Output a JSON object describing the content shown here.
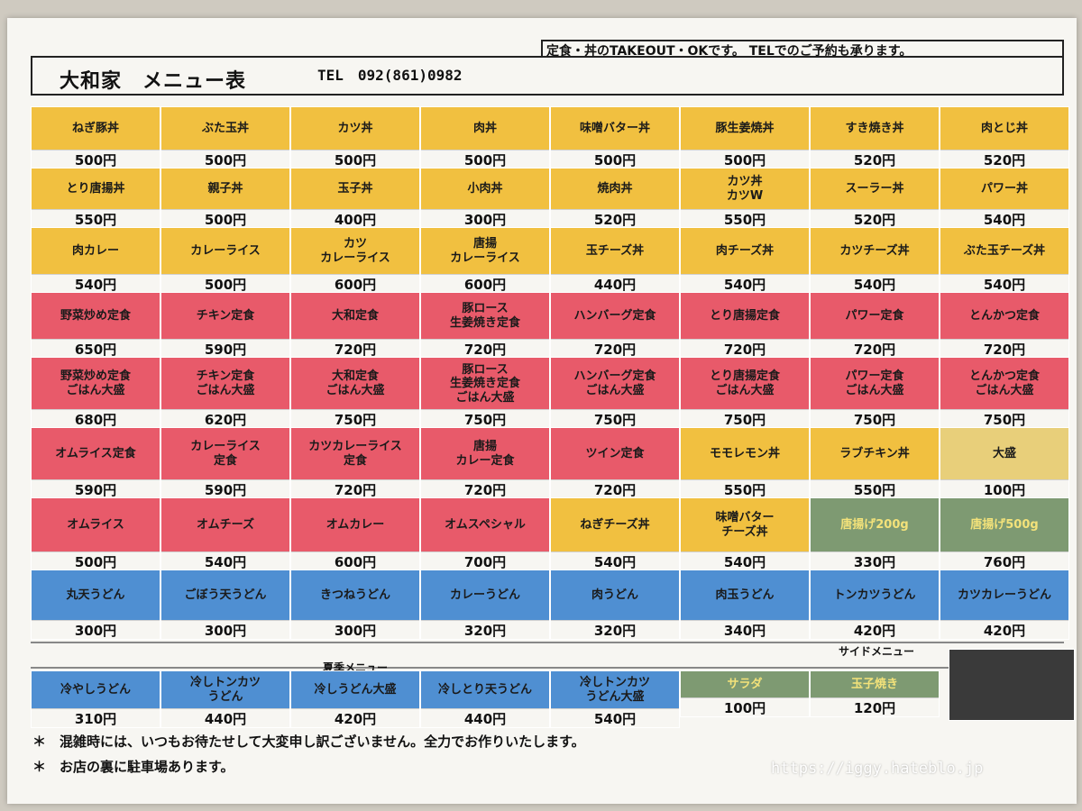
{
  "header": {
    "title": "大和家　メニュー表",
    "tel": "TEL　092(861)0982",
    "notice": "定食・丼のTAKEOUT・OKです。 TELでのご予約も承ります。"
  },
  "colors": {
    "yellow": "#f1c040",
    "red": "#e85a6a",
    "blue": "#4f8fd2",
    "green": "#7e9a72",
    "tan": "#e8cf7a"
  },
  "menu_rows": [
    [
      {
        "name": "ねぎ豚丼",
        "price": "500円",
        "color": "y"
      },
      {
        "name": "ぶた玉丼",
        "price": "500円",
        "color": "y"
      },
      {
        "name": "カツ丼",
        "price": "500円",
        "color": "y"
      },
      {
        "name": "肉丼",
        "price": "500円",
        "color": "y"
      },
      {
        "name": "味噌バター丼",
        "price": "500円",
        "color": "y"
      },
      {
        "name": "豚生姜焼丼",
        "price": "500円",
        "color": "y"
      },
      {
        "name": "すき焼き丼",
        "price": "520円",
        "color": "y"
      },
      {
        "name": "肉とじ丼",
        "price": "520円",
        "color": "y"
      }
    ],
    [
      {
        "name": "とり唐揚丼",
        "price": "550円",
        "color": "y"
      },
      {
        "name": "親子丼",
        "price": "500円",
        "color": "y"
      },
      {
        "name": "玉子丼",
        "price": "400円",
        "color": "y"
      },
      {
        "name": "小肉丼",
        "price": "300円",
        "color": "y"
      },
      {
        "name": "焼肉丼",
        "price": "520円",
        "color": "y"
      },
      {
        "name": "カツ丼\nカツW",
        "price": "550円",
        "color": "y"
      },
      {
        "name": "スーラー丼",
        "price": "520円",
        "color": "y"
      },
      {
        "name": "パワー丼",
        "price": "540円",
        "color": "y"
      }
    ],
    [
      {
        "name": "肉カレー",
        "price": "540円",
        "color": "y"
      },
      {
        "name": "カレーライス",
        "price": "500円",
        "color": "y"
      },
      {
        "name": "カツ\nカレーライス",
        "price": "600円",
        "color": "y"
      },
      {
        "name": "唐揚\nカレーライス",
        "price": "600円",
        "color": "y"
      },
      {
        "name": "玉チーズ丼",
        "price": "440円",
        "color": "y"
      },
      {
        "name": "肉チーズ丼",
        "price": "540円",
        "color": "y"
      },
      {
        "name": "カツチーズ丼",
        "price": "540円",
        "color": "y"
      },
      {
        "name": "ぶた玉チーズ丼",
        "price": "540円",
        "color": "y"
      }
    ],
    [
      {
        "name": "野菜炒め定食",
        "price": "650円",
        "color": "r"
      },
      {
        "name": "チキン定食",
        "price": "590円",
        "color": "r"
      },
      {
        "name": "大和定食",
        "price": "720円",
        "color": "r"
      },
      {
        "name": "豚ロース\n生姜焼き定食",
        "price": "720円",
        "color": "r"
      },
      {
        "name": "ハンバーグ定食",
        "price": "720円",
        "color": "r"
      },
      {
        "name": "とり唐揚定食",
        "price": "720円",
        "color": "r"
      },
      {
        "name": "パワー定食",
        "price": "720円",
        "color": "r"
      },
      {
        "name": "とんかつ定食",
        "price": "720円",
        "color": "r"
      }
    ],
    [
      {
        "name": "野菜炒め定食\nごはん大盛",
        "price": "680円",
        "color": "r"
      },
      {
        "name": "チキン定食\nごはん大盛",
        "price": "620円",
        "color": "r"
      },
      {
        "name": "大和定食\nごはん大盛",
        "price": "750円",
        "color": "r"
      },
      {
        "name": "豚ロース\n生姜焼き定食\nごはん大盛",
        "price": "750円",
        "color": "r"
      },
      {
        "name": "ハンバーグ定食\nごはん大盛",
        "price": "750円",
        "color": "r"
      },
      {
        "name": "とり唐揚定食\nごはん大盛",
        "price": "750円",
        "color": "r"
      },
      {
        "name": "パワー定食\nごはん大盛",
        "price": "750円",
        "color": "r"
      },
      {
        "name": "とんかつ定食\nごはん大盛",
        "price": "750円",
        "color": "r"
      }
    ],
    [
      {
        "name": "オムライス定食",
        "price": "590円",
        "color": "r"
      },
      {
        "name": "カレーライス\n定食",
        "price": "590円",
        "color": "r"
      },
      {
        "name": "カツカレーライス\n定食",
        "price": "720円",
        "color": "r"
      },
      {
        "name": "唐揚\nカレー定食",
        "price": "720円",
        "color": "r"
      },
      {
        "name": "ツイン定食",
        "price": "720円",
        "color": "r"
      },
      {
        "name": "モモレモン丼",
        "price": "550円",
        "color": "y"
      },
      {
        "name": "ラブチキン丼",
        "price": "550円",
        "color": "y"
      },
      {
        "name": "大盛",
        "price": "100円",
        "color": "tan"
      }
    ],
    [
      {
        "name": "オムライス",
        "price": "500円",
        "color": "r"
      },
      {
        "name": "オムチーズ",
        "price": "540円",
        "color": "r"
      },
      {
        "name": "オムカレー",
        "price": "600円",
        "color": "r"
      },
      {
        "name": "オムスペシャル",
        "price": "700円",
        "color": "r"
      },
      {
        "name": "ねぎチーズ丼",
        "price": "540円",
        "color": "y"
      },
      {
        "name": "味噌バター\nチーズ丼",
        "price": "540円",
        "color": "y"
      },
      {
        "name": "唐揚げ200g",
        "price": "330円",
        "color": "g"
      },
      {
        "name": "唐揚げ500g",
        "price": "760円",
        "color": "g"
      }
    ],
    [
      {
        "name": "丸天うどん",
        "price": "300円",
        "color": "b"
      },
      {
        "name": "ごぼう天うどん",
        "price": "300円",
        "color": "b"
      },
      {
        "name": "きつねうどん",
        "price": "300円",
        "color": "b"
      },
      {
        "name": "カレーうどん",
        "price": "320円",
        "color": "b"
      },
      {
        "name": "肉うどん",
        "price": "320円",
        "color": "b"
      },
      {
        "name": "肉玉うどん",
        "price": "340円",
        "color": "b"
      },
      {
        "name": "トンカツうどん",
        "price": "420円",
        "color": "b"
      },
      {
        "name": "カツカレーうどん",
        "price": "420円",
        "color": "b"
      }
    ]
  ],
  "summer_label": "夏季メニュー",
  "side_label": "サイドメニュー",
  "summer_items": [
    {
      "name": "冷やしうどん",
      "price": "310円",
      "color": "b"
    },
    {
      "name": "冷しトンカツ\nうどん",
      "price": "440円",
      "color": "b"
    },
    {
      "name": "冷しうどん大盛",
      "price": "420円",
      "color": "b"
    },
    {
      "name": "冷しとり天うどん",
      "price": "440円",
      "color": "b"
    },
    {
      "name": "冷しトンカツ\nうどん大盛",
      "price": "540円",
      "color": "b"
    }
  ],
  "side_items": [
    {
      "name": "サラダ",
      "price": "100円",
      "color": "g"
    },
    {
      "name": "玉子焼き",
      "price": "120円",
      "color": "g"
    }
  ],
  "footnotes": [
    {
      "mark": "＊",
      "text": "混雑時には、いつもお待たせして大変申し訳ございません。全力でお作りいたします。"
    },
    {
      "mark": "＊",
      "text": "お店の裏に駐車場あります。"
    }
  ],
  "watermark": "https://iggy.hateblo.jp"
}
